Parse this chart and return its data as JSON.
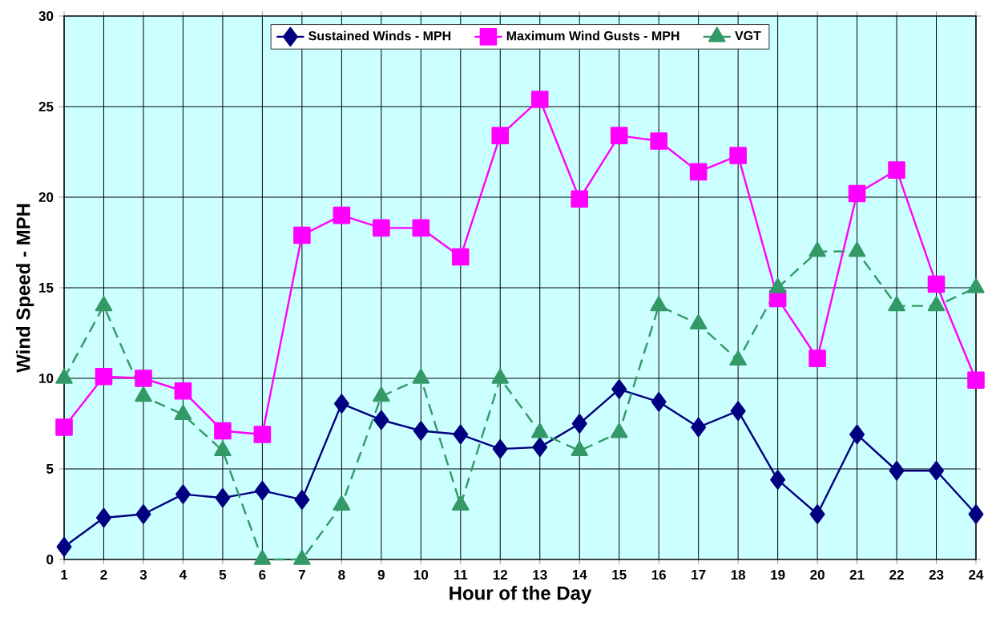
{
  "chart_data": {
    "type": "line",
    "xlabel": "Hour of the Day",
    "ylabel": "Wind Speed - MPH",
    "categories": [
      "1",
      "2",
      "3",
      "4",
      "5",
      "6",
      "7",
      "8",
      "9",
      "10",
      "11",
      "12",
      "13",
      "14",
      "15",
      "16",
      "17",
      "18",
      "19",
      "20",
      "21",
      "22",
      "23",
      "24"
    ],
    "series": [
      {
        "name": "Sustained Winds - MPH",
        "color": "#000080",
        "marker": "diamond",
        "line_style": "solid",
        "values": [
          0.7,
          2.3,
          2.5,
          3.6,
          3.4,
          3.8,
          3.3,
          8.6,
          7.7,
          7.1,
          6.9,
          6.1,
          6.2,
          7.5,
          9.4,
          8.7,
          7.3,
          8.2,
          4.4,
          2.5,
          6.9,
          4.9,
          4.9,
          2.5
        ]
      },
      {
        "name": "Maximum Wind Gusts - MPH",
        "color": "#ff00ff",
        "marker": "square",
        "line_style": "solid",
        "values": [
          7.3,
          10.1,
          10.0,
          9.3,
          7.1,
          6.9,
          17.9,
          19.0,
          18.3,
          18.3,
          16.7,
          23.4,
          25.4,
          19.9,
          23.4,
          23.1,
          21.4,
          22.3,
          14.4,
          11.1,
          20.2,
          21.5,
          15.2,
          9.9
        ]
      },
      {
        "name": "VGT",
        "color": "#339966",
        "marker": "triangle",
        "line_style": "dashed",
        "values": [
          10,
          14,
          9,
          8,
          6,
          0,
          0,
          3,
          9,
          10,
          3,
          10,
          7,
          6,
          7,
          14,
          13,
          11,
          15,
          17,
          17,
          14,
          14,
          15
        ]
      }
    ],
    "ylim": [
      0,
      30
    ],
    "yticks": [
      0,
      5,
      10,
      15,
      20,
      25,
      30
    ],
    "grid": true,
    "legend": "top"
  }
}
